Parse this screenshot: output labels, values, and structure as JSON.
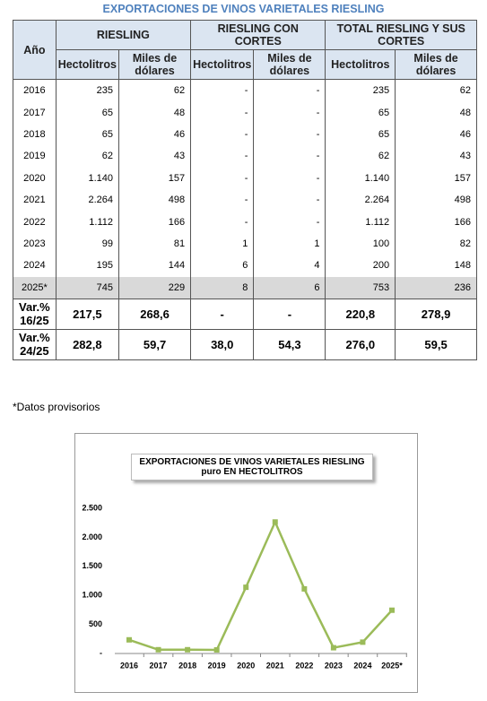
{
  "title": "EXPORTACIONES DE VINOS VARIETALES RIESLING",
  "table": {
    "header": {
      "year": "Año",
      "groups": [
        "RIESLING",
        "RIESLING CON CORTES",
        "TOTAL RIESLING Y SUS CORTES"
      ],
      "subheaders": [
        "Hectolitros",
        "Miles de dólares",
        "Hectolitros",
        "Miles de dólares",
        "Hectolitros",
        "Miles de dólares"
      ]
    },
    "rows": [
      [
        "2016",
        "235",
        "62",
        "-",
        "-",
        "235",
        "62"
      ],
      [
        "2017",
        "65",
        "48",
        "-",
        "-",
        "65",
        "48"
      ],
      [
        "2018",
        "65",
        "46",
        "-",
        "-",
        "65",
        "46"
      ],
      [
        "2019",
        "62",
        "43",
        "-",
        "-",
        "62",
        "43"
      ],
      [
        "2020",
        "1.140",
        "157",
        "-",
        "-",
        "1.140",
        "157"
      ],
      [
        "2021",
        "2.264",
        "498",
        "-",
        "-",
        "2.264",
        "498"
      ],
      [
        "2022",
        "1.112",
        "166",
        "-",
        "-",
        "1.112",
        "166"
      ],
      [
        "2023",
        "99",
        "81",
        "1",
        "1",
        "100",
        "82"
      ],
      [
        "2024",
        "195",
        "144",
        "6",
        "4",
        "200",
        "148"
      ],
      [
        "2025*",
        "745",
        "229",
        "8",
        "6",
        "753",
        "236"
      ]
    ],
    "var_rows": [
      [
        "Var.%\n16/25",
        "217,5",
        "268,6",
        "-",
        "-",
        "220,8",
        "278,9"
      ],
      [
        "Var.%\n24/25",
        "282,8",
        "59,7",
        "38,0",
        "54,3",
        "276,0",
        "59,5"
      ]
    ]
  },
  "footnote": "*Datos provisorios",
  "chart_data": {
    "type": "line",
    "title": "EXPORTACIONES DE VINOS VARIETALES RIESLING puro EN HECTOLITROS",
    "categories": [
      "2016",
      "2017",
      "2018",
      "2019",
      "2020",
      "2021",
      "2022",
      "2023",
      "2024",
      "2025*"
    ],
    "values": [
      235,
      65,
      65,
      62,
      1140,
      2264,
      1112,
      99,
      195,
      745
    ],
    "color": "#9bbb59",
    "ylim": [
      0,
      2500
    ],
    "yticks": [
      {
        "value": 0,
        "label": "-"
      },
      500,
      {
        "value": 1000,
        "label": "1.000"
      },
      {
        "value": 1500,
        "label": "1.500"
      },
      {
        "value": 2000,
        "label": "2.000"
      },
      {
        "value": 2500,
        "label": "2.500"
      }
    ]
  }
}
